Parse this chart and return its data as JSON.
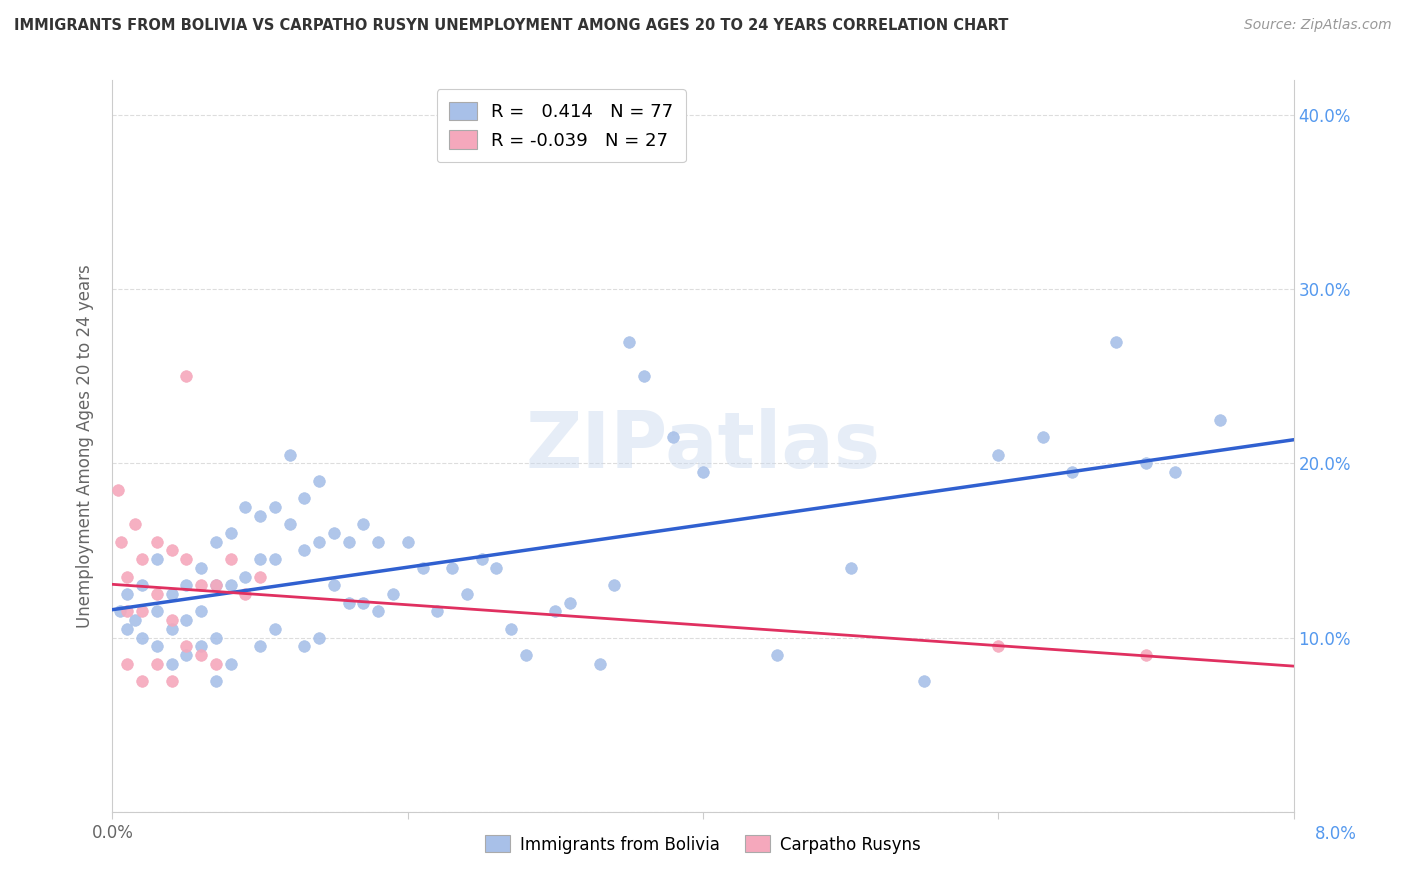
{
  "title": "IMMIGRANTS FROM BOLIVIA VS CARPATHO RUSYN UNEMPLOYMENT AMONG AGES 20 TO 24 YEARS CORRELATION CHART",
  "source": "Source: ZipAtlas.com",
  "ylabel": "Unemployment Among Ages 20 to 24 years",
  "xlabel_bolivia": "Immigrants from Bolivia",
  "xlabel_rusyn": "Carpatho Rusyns",
  "xmin": 0.0,
  "xmax": 0.08,
  "ymin": 0.0,
  "ymax": 0.42,
  "bolivia_r": 0.414,
  "bolivia_n": 77,
  "rusyn_r": -0.039,
  "rusyn_n": 27,
  "bolivia_color": "#a8c0e8",
  "rusyn_color": "#f5a8bc",
  "line_bolivia_color": "#3060d0",
  "line_rusyn_color": "#e03060",
  "bolivia_x": [
    0.0005,
    0.001,
    0.001,
    0.0015,
    0.002,
    0.002,
    0.003,
    0.003,
    0.003,
    0.004,
    0.004,
    0.004,
    0.005,
    0.005,
    0.005,
    0.006,
    0.006,
    0.006,
    0.007,
    0.007,
    0.007,
    0.007,
    0.008,
    0.008,
    0.008,
    0.009,
    0.009,
    0.01,
    0.01,
    0.01,
    0.011,
    0.011,
    0.011,
    0.012,
    0.012,
    0.013,
    0.013,
    0.013,
    0.014,
    0.014,
    0.014,
    0.015,
    0.015,
    0.016,
    0.016,
    0.017,
    0.017,
    0.018,
    0.018,
    0.019,
    0.02,
    0.021,
    0.022,
    0.023,
    0.024,
    0.025,
    0.026,
    0.027,
    0.028,
    0.03,
    0.031,
    0.033,
    0.034,
    0.035,
    0.036,
    0.038,
    0.04,
    0.045,
    0.05,
    0.055,
    0.06,
    0.063,
    0.065,
    0.068,
    0.07,
    0.072,
    0.075
  ],
  "bolivia_y": [
    0.115,
    0.125,
    0.105,
    0.11,
    0.13,
    0.1,
    0.145,
    0.115,
    0.095,
    0.125,
    0.105,
    0.085,
    0.13,
    0.11,
    0.09,
    0.14,
    0.115,
    0.095,
    0.155,
    0.13,
    0.1,
    0.075,
    0.16,
    0.13,
    0.085,
    0.175,
    0.135,
    0.17,
    0.145,
    0.095,
    0.175,
    0.145,
    0.105,
    0.205,
    0.165,
    0.18,
    0.15,
    0.095,
    0.19,
    0.155,
    0.1,
    0.16,
    0.13,
    0.155,
    0.12,
    0.165,
    0.12,
    0.155,
    0.115,
    0.125,
    0.155,
    0.14,
    0.115,
    0.14,
    0.125,
    0.145,
    0.14,
    0.105,
    0.09,
    0.115,
    0.12,
    0.085,
    0.13,
    0.27,
    0.25,
    0.215,
    0.195,
    0.09,
    0.14,
    0.075,
    0.205,
    0.215,
    0.195,
    0.27,
    0.2,
    0.195,
    0.225
  ],
  "rusyn_x": [
    0.0004,
    0.0006,
    0.001,
    0.001,
    0.001,
    0.0015,
    0.002,
    0.002,
    0.002,
    0.003,
    0.003,
    0.003,
    0.004,
    0.004,
    0.004,
    0.005,
    0.005,
    0.005,
    0.006,
    0.006,
    0.007,
    0.007,
    0.008,
    0.009,
    0.01,
    0.06,
    0.07
  ],
  "rusyn_y": [
    0.185,
    0.155,
    0.135,
    0.115,
    0.085,
    0.165,
    0.145,
    0.115,
    0.075,
    0.155,
    0.125,
    0.085,
    0.15,
    0.11,
    0.075,
    0.145,
    0.25,
    0.095,
    0.13,
    0.09,
    0.13,
    0.085,
    0.145,
    0.125,
    0.135,
    0.095,
    0.09
  ],
  "yticks": [
    0.0,
    0.1,
    0.2,
    0.3,
    0.4
  ],
  "xticks": [
    0.0,
    0.02,
    0.04,
    0.06,
    0.08
  ]
}
